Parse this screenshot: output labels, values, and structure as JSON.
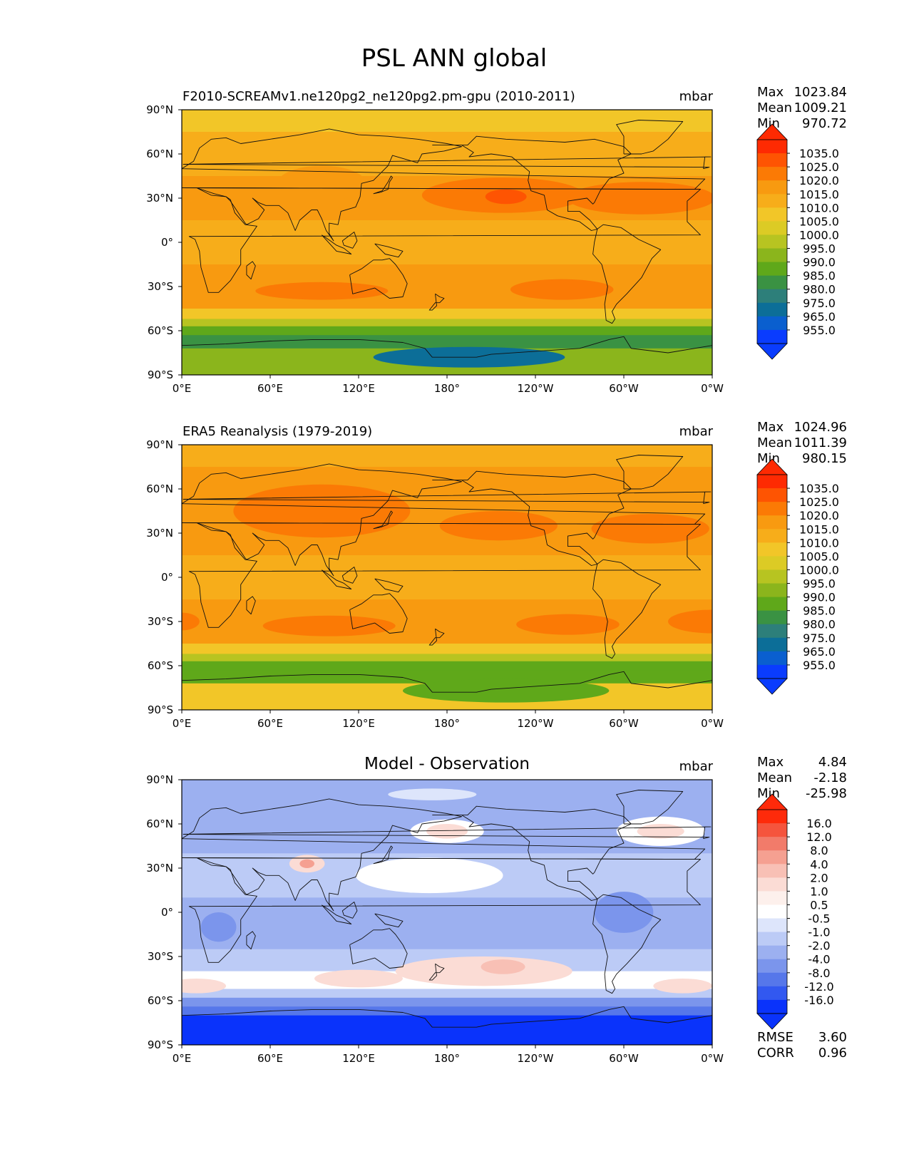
{
  "figure": {
    "title": "PSL ANN global"
  },
  "chart_data": [
    {
      "type": "heatmap",
      "panel": "model",
      "title": "F2010-SCREAMv1.ne120pg2_ne120pg2.pm-gpu (2010-2011)",
      "units": "mbar",
      "stats": {
        "labels": [
          "Max",
          "Mean",
          "Min"
        ],
        "values": [
          "1023.84",
          "1009.21",
          "970.72"
        ]
      },
      "xticks": [
        "0°E",
        "60°E",
        "120°E",
        "180°",
        "120°W",
        "60°W",
        "0°W"
      ],
      "yticks": [
        "90°N",
        "60°N",
        "30°N",
        "0°",
        "30°S",
        "60°S",
        "90°S"
      ],
      "xlim": [
        0,
        360
      ],
      "ylim": [
        -90,
        90
      ],
      "colorbar": {
        "labels": [
          "1035.0",
          "1025.0",
          "1020.0",
          "1015.0",
          "1010.0",
          "1005.0",
          "1000.0",
          "995.0",
          "990.0",
          "985.0",
          "980.0",
          "975.0",
          "965.0",
          "955.0"
        ],
        "colors": [
          "#fe2a02",
          "#fe5402",
          "#fb7a05",
          "#f89a10",
          "#f7ad1a",
          "#f2c628",
          "#dccb25",
          "#b7c421",
          "#8bb51c",
          "#5fa81a",
          "#3a9243",
          "#2d7f7a",
          "#0c6e98",
          "#0a5fcf",
          "#0a3cfe"
        ],
        "over": "#fe2a02",
        "under": "#0a3cfe"
      },
      "bands": [
        {
          "lat": [
            90,
            75
          ],
          "pressure": 1006.0
        },
        {
          "lat": [
            75,
            45
          ],
          "pressure": 1012.0
        },
        {
          "lat": [
            45,
            15
          ],
          "pressure": 1016.0
        },
        {
          "lat": [
            15,
            -15
          ],
          "pressure": 1011.0
        },
        {
          "lat": [
            -15,
            -45
          ],
          "pressure": 1016.0
        },
        {
          "lat": [
            -45,
            -52
          ],
          "pressure": 1006.0
        },
        {
          "lat": [
            -52,
            -57
          ],
          "pressure": 995.0
        },
        {
          "lat": [
            -57,
            -63
          ],
          "pressure": 985.0
        },
        {
          "lat": [
            -63,
            -72
          ],
          "pressure": 980.0
        },
        {
          "lat": [
            -72,
            -90
          ],
          "pressure": 990.0
        }
      ],
      "blobs": [
        {
          "lon": 218,
          "lat": 32,
          "rx": 55,
          "ry": 12,
          "pressure": 1021.0
        },
        {
          "lon": 220,
          "lat": 31,
          "rx": 14,
          "ry": 5,
          "pressure": 1026.0
        },
        {
          "lon": 312,
          "lat": 30,
          "rx": 50,
          "ry": 11,
          "pressure": 1021.0
        },
        {
          "lon": 95,
          "lat": -33,
          "rx": 45,
          "ry": 6,
          "pressure": 1021.0
        },
        {
          "lon": 258,
          "lat": -32,
          "rx": 35,
          "ry": 7,
          "pressure": 1021.0
        },
        {
          "lon": 195,
          "lat": -78,
          "rx": 65,
          "ry": 7,
          "pressure": 970.0
        },
        {
          "lon": 95,
          "lat": 40,
          "rx": 30,
          "ry": 12,
          "pressure": 1016.0
        }
      ]
    },
    {
      "type": "heatmap",
      "panel": "reference",
      "title": "ERA5 Reanalysis (1979-2019)",
      "units": "mbar",
      "stats": {
        "labels": [
          "Max",
          "Mean",
          "Min"
        ],
        "values": [
          "1024.96",
          "1011.39",
          "980.15"
        ]
      },
      "xticks": [
        "0°E",
        "60°E",
        "120°E",
        "180°",
        "120°W",
        "60°W",
        "0°W"
      ],
      "yticks": [
        "90°N",
        "60°N",
        "30°N",
        "0°",
        "30°S",
        "60°S",
        "90°S"
      ],
      "xlim": [
        0,
        360
      ],
      "ylim": [
        -90,
        90
      ],
      "colorbar": {
        "labels": [
          "1035.0",
          "1025.0",
          "1020.0",
          "1015.0",
          "1010.0",
          "1005.0",
          "1000.0",
          "995.0",
          "990.0",
          "985.0",
          "980.0",
          "975.0",
          "965.0",
          "955.0"
        ],
        "colors": [
          "#fe2a02",
          "#fe5402",
          "#fb7a05",
          "#f89a10",
          "#f7ad1a",
          "#f2c628",
          "#dccb25",
          "#b7c421",
          "#8bb51c",
          "#5fa81a",
          "#3a9243",
          "#2d7f7a",
          "#0c6e98",
          "#0a5fcf",
          "#0a3cfe"
        ],
        "over": "#fe2a02",
        "under": "#0a3cfe"
      },
      "bands": [
        {
          "lat": [
            90,
            75
          ],
          "pressure": 1012.0
        },
        {
          "lat": [
            75,
            45
          ],
          "pressure": 1016.0
        },
        {
          "lat": [
            45,
            15
          ],
          "pressure": 1017.0
        },
        {
          "lat": [
            15,
            -15
          ],
          "pressure": 1012.0
        },
        {
          "lat": [
            -15,
            -45
          ],
          "pressure": 1016.0
        },
        {
          "lat": [
            -45,
            -52
          ],
          "pressure": 1006.0
        },
        {
          "lat": [
            -52,
            -57
          ],
          "pressure": 995.0
        },
        {
          "lat": [
            -57,
            -63
          ],
          "pressure": 989.0
        },
        {
          "lat": [
            -63,
            -72
          ],
          "pressure": 987.0
        },
        {
          "lat": [
            -72,
            -90
          ],
          "pressure": 1005.0
        }
      ],
      "blobs": [
        {
          "lon": 215,
          "lat": 35,
          "rx": 40,
          "ry": 10,
          "pressure": 1021.0
        },
        {
          "lon": 318,
          "lat": 33,
          "rx": 40,
          "ry": 10,
          "pressure": 1021.0
        },
        {
          "lon": 100,
          "lat": -33,
          "rx": 45,
          "ry": 7,
          "pressure": 1021.0
        },
        {
          "lon": 262,
          "lat": -32,
          "rx": 35,
          "ry": 7,
          "pressure": 1021.0
        },
        {
          "lon": 360,
          "lat": -30,
          "rx": 30,
          "ry": 8,
          "pressure": 1021.0
        },
        {
          "lon": 0,
          "lat": -30,
          "rx": 12,
          "ry": 6,
          "pressure": 1021.0
        },
        {
          "lon": 95,
          "lat": 45,
          "rx": 60,
          "ry": 18,
          "pressure": 1021.0
        },
        {
          "lon": 220,
          "lat": -77,
          "rx": 70,
          "ry": 8,
          "pressure": 985.0
        }
      ]
    },
    {
      "type": "heatmap",
      "panel": "difference",
      "title": "Model - Observation",
      "units": "mbar",
      "stats": {
        "labels": [
          "Max",
          "Mean",
          "Min"
        ],
        "values": [
          "4.84",
          "-2.18",
          "-25.98"
        ]
      },
      "metrics": {
        "labels": [
          "RMSE",
          "CORR"
        ],
        "values": [
          "3.60",
          "0.96"
        ]
      },
      "xticks": [
        "0°E",
        "60°E",
        "120°E",
        "180°",
        "120°W",
        "60°W",
        "0°W"
      ],
      "yticks": [
        "90°N",
        "60°N",
        "30°N",
        "0°",
        "30°S",
        "60°S",
        "90°S"
      ],
      "xlim": [
        0,
        360
      ],
      "ylim": [
        -90,
        90
      ],
      "colorbar": {
        "labels": [
          "16.0",
          "12.0",
          "8.0",
          "4.0",
          "2.0",
          "1.0",
          "0.5",
          "-0.5",
          "-1.0",
          "-2.0",
          "-4.0",
          "-8.0",
          "-12.0",
          "-16.0"
        ],
        "colors": [
          "#fe2a0a",
          "#f5543d",
          "#f27b6a",
          "#f5a091",
          "#f8c0b5",
          "#fbdcd5",
          "#fdf0ec",
          "#ffffff",
          "#dde5fb",
          "#bccbf6",
          "#9cb0f0",
          "#7b95ec",
          "#5677ea",
          "#3258f0",
          "#0a33fb"
        ],
        "over": "#fe2a0a",
        "under": "#0a33fb"
      },
      "bands": [
        {
          "lat": [
            90,
            70
          ],
          "pressure": -2.5
        },
        {
          "lat": [
            70,
            40
          ],
          "pressure": -3.0
        },
        {
          "lat": [
            40,
            10
          ],
          "pressure": -1.5
        },
        {
          "lat": [
            10,
            -25
          ],
          "pressure": -3.0
        },
        {
          "lat": [
            -25,
            -40
          ],
          "pressure": -1.5
        },
        {
          "lat": [
            -40,
            -52
          ],
          "pressure": 0.0
        },
        {
          "lat": [
            -52,
            -58
          ],
          "pressure": -1.5
        },
        {
          "lat": [
            -58,
            -64
          ],
          "pressure": -5.0
        },
        {
          "lat": [
            -64,
            -70
          ],
          "pressure": -10.0
        },
        {
          "lat": [
            -70,
            -90
          ],
          "pressure": -20.0
        }
      ],
      "blobs": [
        {
          "lon": 168,
          "lat": 25,
          "rx": 50,
          "ry": 12,
          "pressure": 0.0
        },
        {
          "lon": 180,
          "lat": 55,
          "rx": 25,
          "ry": 8,
          "pressure": 0.0
        },
        {
          "lon": 180,
          "lat": 55,
          "rx": 14,
          "ry": 5,
          "pressure": 1.5
        },
        {
          "lon": 325,
          "lat": 55,
          "rx": 30,
          "ry": 10,
          "pressure": 0.0
        },
        {
          "lon": 325,
          "lat": 55,
          "rx": 16,
          "ry": 5,
          "pressure": 1.5
        },
        {
          "lon": 85,
          "lat": 33,
          "rx": 12,
          "ry": 6,
          "pressure": 1.5
        },
        {
          "lon": 85,
          "lat": 33,
          "rx": 5,
          "ry": 3,
          "pressure": 6.0
        },
        {
          "lon": 120,
          "lat": -45,
          "rx": 30,
          "ry": 6,
          "pressure": 1.5
        },
        {
          "lon": 205,
          "lat": -40,
          "rx": 60,
          "ry": 10,
          "pressure": 1.5
        },
        {
          "lon": 218,
          "lat": -37,
          "rx": 15,
          "ry": 5,
          "pressure": 3.0
        },
        {
          "lon": 10,
          "lat": -50,
          "rx": 20,
          "ry": 5,
          "pressure": 1.5
        },
        {
          "lon": 340,
          "lat": -50,
          "rx": 20,
          "ry": 5,
          "pressure": 1.5
        },
        {
          "lon": 300,
          "lat": 0,
          "rx": 20,
          "ry": 14,
          "pressure": -6.0
        },
        {
          "lon": 25,
          "lat": -10,
          "rx": 12,
          "ry": 10,
          "pressure": -5.0
        },
        {
          "lon": 170,
          "lat": 80,
          "rx": 30,
          "ry": 4,
          "pressure": -0.8
        }
      ]
    }
  ]
}
